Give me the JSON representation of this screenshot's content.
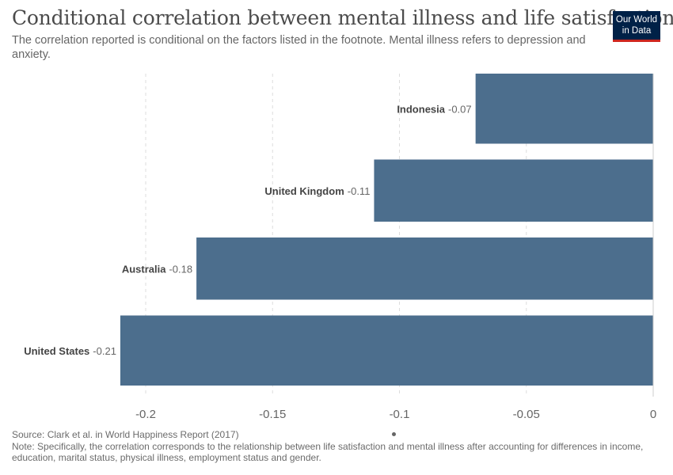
{
  "header": {
    "title": "Conditional correlation between mental illness and life satisfaction",
    "subtitle": "The correlation reported is conditional on the factors listed in the footnote. Mental illness refers to depression and anxiety."
  },
  "logo": {
    "line1": "Our World",
    "line2": "in Data",
    "bg_color": "#002147",
    "accent_color": "#ce261e"
  },
  "footer": {
    "source": "Source: Clark et al. in World Happiness Report (2017)",
    "note": "Note: Specifically, the correlation corresponds to the relationship between life satisfaction and mental illness after accounting for differences in income, education, marital status, physical illness, employment status and gender."
  },
  "chart_data": {
    "type": "bar",
    "orientation": "horizontal",
    "title": "Conditional correlation between mental illness and life satisfaction",
    "categories": [
      "Indonesia",
      "United Kingdom",
      "Australia",
      "United States"
    ],
    "values": [
      -0.07,
      -0.11,
      -0.18,
      -0.21
    ],
    "value_labels": [
      "-0.07",
      "-0.11",
      "-0.18",
      "-0.21"
    ],
    "xlim": [
      -0.21,
      0
    ],
    "xticks": [
      -0.2,
      -0.15,
      -0.1,
      -0.05,
      0
    ],
    "xtick_labels": [
      "-0.2",
      "-0.15",
      "-0.1",
      "-0.05",
      "0"
    ],
    "grid": true,
    "bar_color": "#4c6e8d"
  }
}
